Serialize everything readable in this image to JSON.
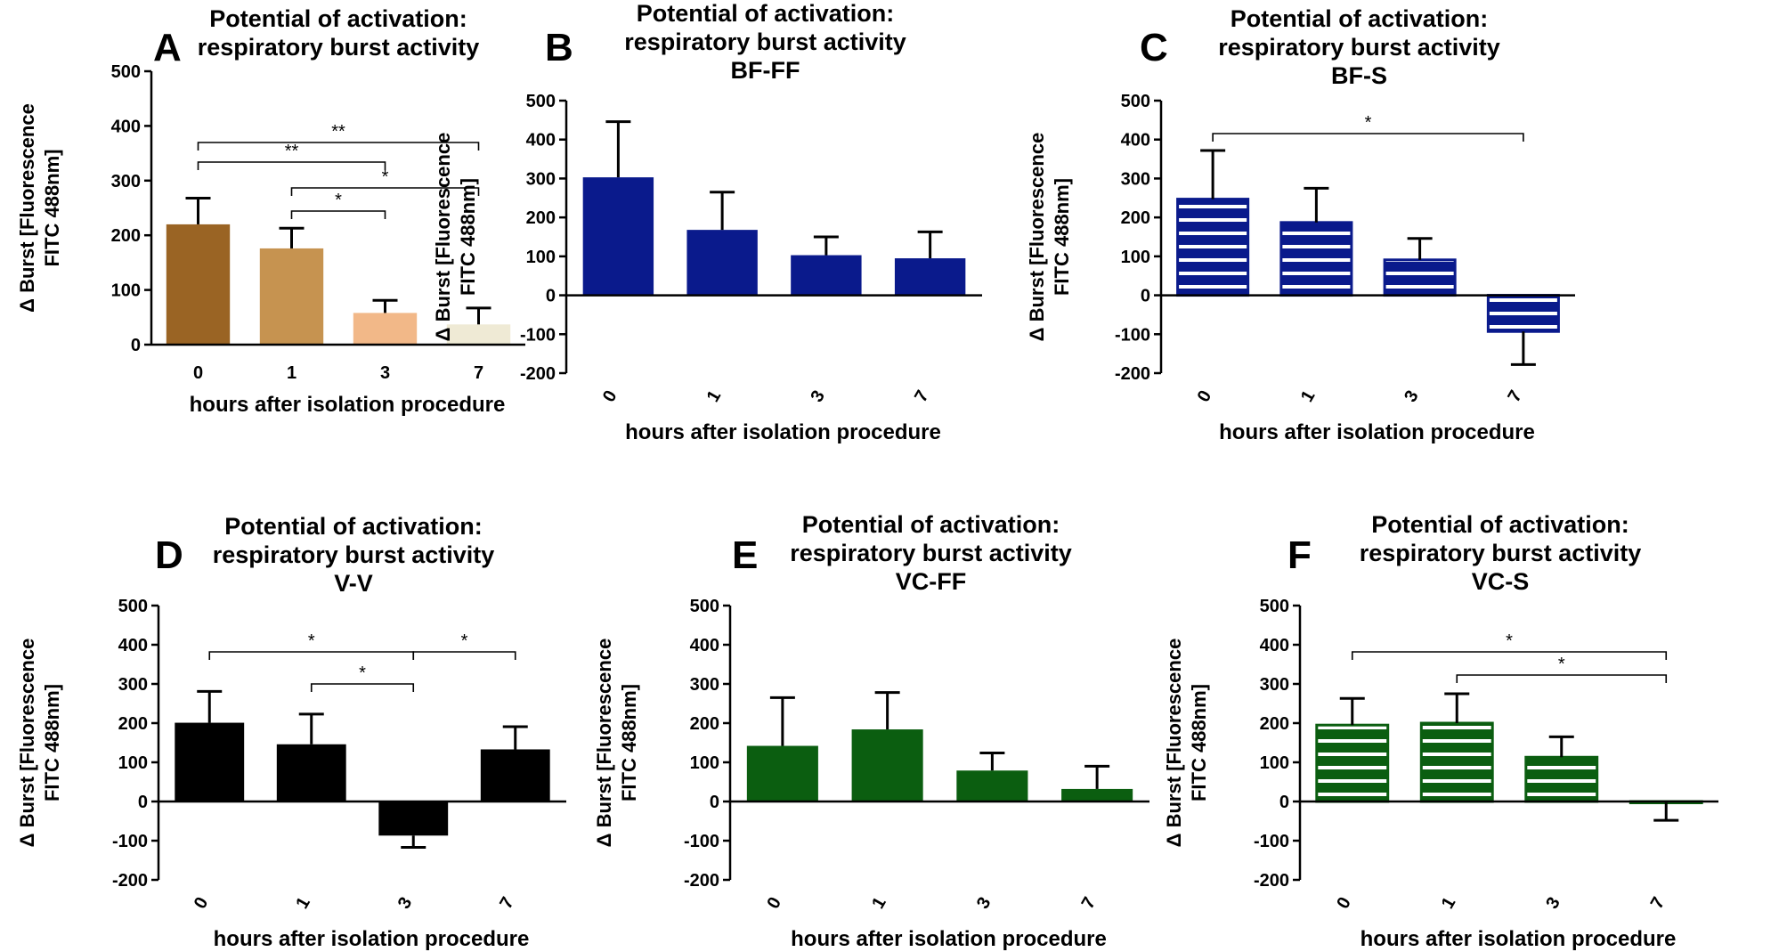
{
  "figure": {
    "xlabel": "hours after isolation procedure",
    "ylabel_line1": "Δ Burst  [Fluorescence",
    "ylabel_line2": "FITC 488nm]"
  },
  "colors": {
    "A_bars": [
      "#9a6424",
      "#c69350",
      "#f2b888",
      "#efead5"
    ],
    "navy": "#0a1a8c",
    "black": "#000000",
    "green": "#0b5e10",
    "white": "#ffffff"
  },
  "chart_data": [
    {
      "panel": "A",
      "type": "bar",
      "title_lines": [
        "Potential of activation:",
        "respiratory burst activity"
      ],
      "categories": [
        "0",
        "1",
        "3",
        "7"
      ],
      "values": [
        220,
        176,
        58,
        37
      ],
      "errors": [
        48,
        37,
        23,
        30
      ],
      "ylim": [
        0,
        500
      ],
      "yticks": [
        0,
        100,
        200,
        300,
        400,
        500
      ],
      "fill": "per-bar",
      "significance": [
        {
          "from": 0,
          "to": 3,
          "label": "**"
        },
        {
          "from": 0,
          "to": 2,
          "label": "**"
        },
        {
          "from": 1,
          "to": 3,
          "label": "*"
        },
        {
          "from": 1,
          "to": 2,
          "label": "*"
        }
      ]
    },
    {
      "panel": "B",
      "type": "bar",
      "title_lines": [
        "Potential of activation:",
        "respiratory burst activity",
        "BF-FF"
      ],
      "categories": [
        "0",
        "1",
        "3",
        "7"
      ],
      "values": [
        303,
        168,
        103,
        95
      ],
      "errors": [
        143,
        97,
        47,
        68
      ],
      "ylim": [
        -200,
        500
      ],
      "yticks": [
        -200,
        -100,
        0,
        100,
        200,
        300,
        400,
        500
      ],
      "fill": "solid",
      "significance": []
    },
    {
      "panel": "C",
      "type": "bar",
      "title_lines": [
        "Potential of activation:",
        "respiratory burst activity",
        "BF-S"
      ],
      "categories": [
        "0",
        "1",
        "3",
        "7"
      ],
      "values": [
        247,
        187,
        91,
        -93
      ],
      "errors": [
        125,
        88,
        55,
        85
      ],
      "ylim": [
        -200,
        500
      ],
      "yticks": [
        -200,
        -100,
        0,
        100,
        200,
        300,
        400,
        500
      ],
      "fill": "striped",
      "significance": [
        {
          "from": 0,
          "to": 3,
          "label": "*"
        }
      ]
    },
    {
      "panel": "D",
      "type": "bar",
      "title_lines": [
        "Potential of activation:",
        "respiratory burst activity",
        "V-V"
      ],
      "categories": [
        "0",
        "1",
        "3",
        "7"
      ],
      "values": [
        201,
        146,
        -87,
        133
      ],
      "errors": [
        80,
        77,
        30,
        58
      ],
      "ylim": [
        -200,
        500
      ],
      "yticks": [
        -200,
        -100,
        0,
        100,
        200,
        300,
        400,
        500
      ],
      "fill": "solid",
      "significance": [
        {
          "from": 0,
          "to": 2,
          "label": "*"
        },
        {
          "from": 2,
          "to": 3,
          "label": "*"
        },
        {
          "from": 1,
          "to": 2,
          "label": "*"
        }
      ]
    },
    {
      "panel": "E",
      "type": "bar",
      "title_lines": [
        "Potential of activation:",
        "respiratory burst activity",
        "VC-FF"
      ],
      "categories": [
        "0",
        "1",
        "3",
        "7"
      ],
      "values": [
        142,
        184,
        79,
        32
      ],
      "errors": [
        123,
        94,
        45,
        58
      ],
      "ylim": [
        -200,
        500
      ],
      "yticks": [
        -200,
        -100,
        0,
        100,
        200,
        300,
        400,
        500
      ],
      "fill": "solid",
      "significance": []
    },
    {
      "panel": "F",
      "type": "bar",
      "title_lines": [
        "Potential of activation:",
        "respiratory burst activity",
        "VC-S"
      ],
      "categories": [
        "0",
        "1",
        "3",
        "7"
      ],
      "values": [
        195,
        200,
        113,
        -3
      ],
      "errors": [
        68,
        75,
        52,
        45
      ],
      "ylim": [
        -200,
        500
      ],
      "yticks": [
        -200,
        -100,
        0,
        100,
        200,
        300,
        400,
        500
      ],
      "fill": "striped",
      "significance": [
        {
          "from": 0,
          "to": 3,
          "label": "*"
        },
        {
          "from": 1,
          "to": 3,
          "label": "*"
        }
      ]
    }
  ]
}
